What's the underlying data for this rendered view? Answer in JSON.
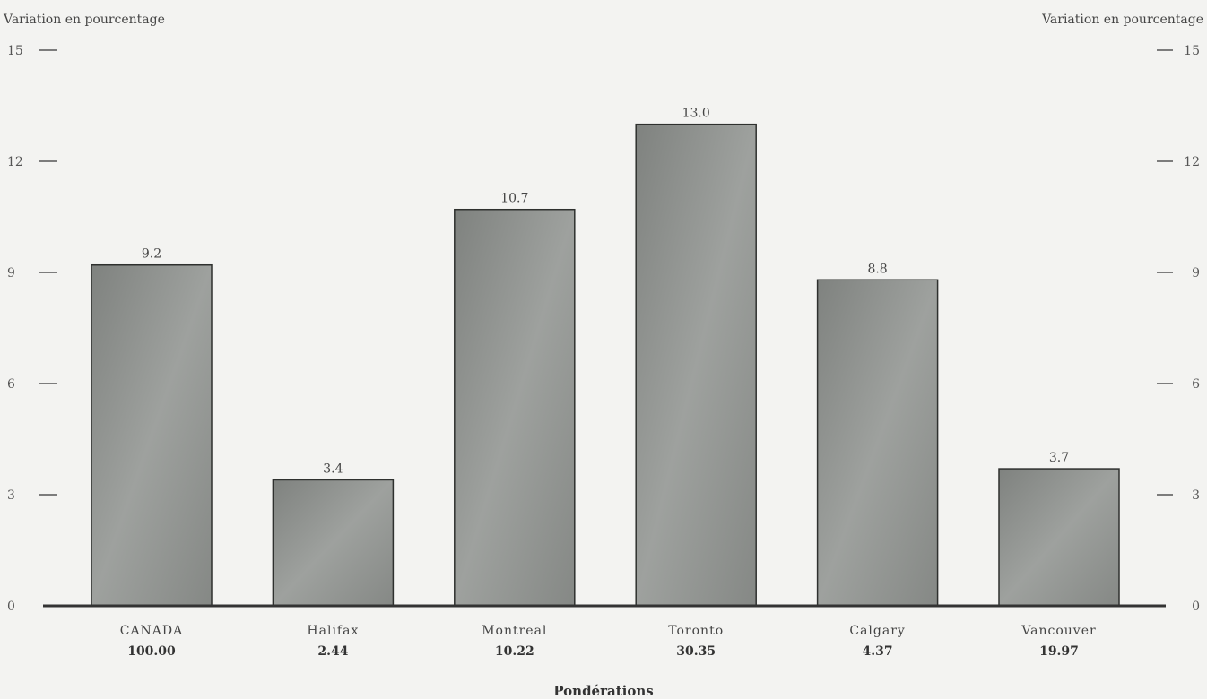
{
  "chart_data": {
    "type": "bar",
    "title": "",
    "ylabel_left": "Variation en pourcentage",
    "ylabel_right": "Variation en pourcentage",
    "xlabel": "Pondérations",
    "ylim": [
      0,
      15
    ],
    "yticks_left": [
      "0",
      "3",
      "6",
      "9",
      "12",
      "15"
    ],
    "yticks_right": [
      "0",
      "3",
      "6",
      "9",
      "12",
      "15"
    ],
    "categories": [
      "CANADA",
      "Halifax",
      "Montreal",
      "Toronto",
      "Calgary",
      "Vancouver"
    ],
    "weights": [
      "100.00",
      "2.44",
      "10.22",
      "30.35",
      "4.37",
      "19.97"
    ],
    "values": [
      9.2,
      3.4,
      10.7,
      13.0,
      8.8,
      3.7
    ],
    "value_labels": [
      "9.2",
      "3.4",
      "10.7",
      "13.0",
      "8.8",
      "3.7"
    ],
    "grid": false,
    "colors": {
      "bar": "#8f928f",
      "bar_edge": "#2e302e",
      "axis": "#333333",
      "background": "#f3f3f1"
    }
  }
}
